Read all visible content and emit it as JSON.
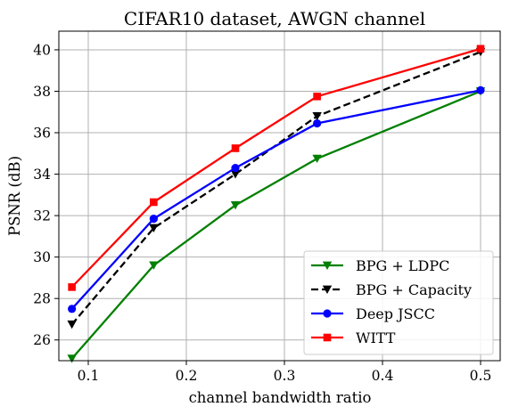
{
  "chart_data": {
    "type": "line",
    "title": "CIFAR10 dataset, AWGN channel",
    "xlabel": "channel bandwidth ratio",
    "ylabel": "PSNR (dB)",
    "xlim": [
      0.07,
      0.52
    ],
    "ylim": [
      25,
      40.9
    ],
    "xticks": [
      0.1,
      0.2,
      0.3,
      0.4,
      0.5
    ],
    "xtick_labels": [
      "0.1",
      "0.2",
      "0.3",
      "0.4",
      "0.5"
    ],
    "yticks": [
      26,
      28,
      30,
      32,
      34,
      36,
      38,
      40
    ],
    "ytick_labels": [
      "26",
      "28",
      "30",
      "32",
      "34",
      "36",
      "38",
      "40"
    ],
    "grid": true,
    "legend_position": "bottom-right",
    "x": [
      0.0833,
      0.1667,
      0.25,
      0.3333,
      0.5
    ],
    "series": [
      {
        "name": "BPG + LDPC",
        "values": [
          25.1,
          29.6,
          32.5,
          34.75,
          38.0
        ],
        "color": "#008000",
        "marker": "triangle-down",
        "dash": "solid"
      },
      {
        "name": "BPG + Capacity",
        "values": [
          26.75,
          31.4,
          34.0,
          36.8,
          39.9
        ],
        "color": "#000000",
        "marker": "triangle-down",
        "dash": "dashed"
      },
      {
        "name": "Deep JSCC",
        "values": [
          27.5,
          31.85,
          34.3,
          36.45,
          38.05
        ],
        "color": "#0000ff",
        "marker": "circle",
        "dash": "solid"
      },
      {
        "name": "WITT",
        "values": [
          28.55,
          32.65,
          35.25,
          37.75,
          40.05
        ],
        "color": "#ff0000",
        "marker": "square",
        "dash": "solid"
      }
    ]
  }
}
